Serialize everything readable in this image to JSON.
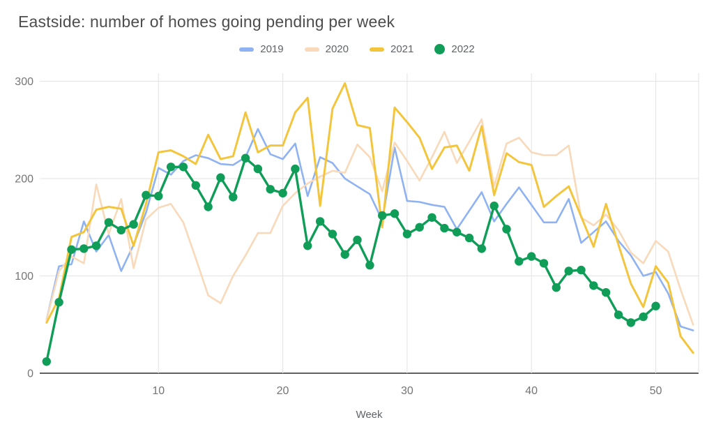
{
  "title": "Eastside: number of homes going pending per week",
  "chart_data": {
    "type": "line",
    "title": "Eastside: number of homes going pending per week",
    "xlabel": "Week",
    "ylabel": "",
    "xlim": [
      1,
      53
    ],
    "ylim": [
      0,
      300
    ],
    "grid": true,
    "legend_position": "top-center",
    "axis_text_color": "#757575",
    "gridline_color": "#e3e3e3",
    "axisline_color": "#616161",
    "y_ticks": [
      0,
      100,
      200,
      300
    ],
    "x_ticks": [
      10,
      20,
      30,
      40,
      50
    ],
    "x": [
      1,
      2,
      3,
      4,
      5,
      6,
      7,
      8,
      9,
      10,
      11,
      12,
      13,
      14,
      15,
      16,
      17,
      18,
      19,
      20,
      21,
      22,
      23,
      24,
      25,
      26,
      27,
      28,
      29,
      30,
      31,
      32,
      33,
      34,
      35,
      36,
      37,
      38,
      39,
      40,
      41,
      42,
      43,
      44,
      45,
      46,
      47,
      48,
      49,
      50,
      51,
      52,
      53
    ],
    "series": [
      {
        "name": "2019",
        "color": "#8fb2f2",
        "style": "line",
        "values": [
          55,
          110,
          112,
          156,
          125,
          142,
          105,
          132,
          165,
          211,
          204,
          218,
          224,
          221,
          215,
          214,
          222,
          251,
          225,
          220,
          236,
          182,
          222,
          216,
          200,
          192,
          184,
          157,
          232,
          177,
          176,
          173,
          171,
          148,
          167,
          186,
          156,
          174,
          191,
          173,
          155,
          155,
          179,
          134,
          145,
          156,
          136,
          121,
          100,
          104,
          82,
          48,
          44
        ]
      },
      {
        "name": "2020",
        "color": "#f8d9b9",
        "style": "line",
        "values": [
          55,
          105,
          120,
          113,
          194,
          143,
          179,
          108,
          158,
          170,
          174,
          155,
          118,
          80,
          72,
          100,
          121,
          144,
          144,
          172,
          185,
          195,
          202,
          208,
          206,
          235,
          222,
          187,
          237,
          218,
          198,
          222,
          248,
          216,
          238,
          261,
          192,
          236,
          242,
          227,
          224,
          224,
          234,
          160,
          152,
          163,
          147,
          124,
          113,
          136,
          125,
          86,
          50
        ]
      },
      {
        "name": "2021",
        "color": "#f3c53d",
        "style": "line",
        "values": [
          52,
          77,
          140,
          145,
          168,
          171,
          169,
          131,
          174,
          227,
          229,
          223,
          215,
          245,
          220,
          223,
          268,
          227,
          234,
          234,
          268,
          283,
          172,
          272,
          298,
          255,
          252,
          150,
          273,
          258,
          242,
          210,
          232,
          234,
          208,
          254,
          183,
          226,
          217,
          214,
          171,
          182,
          192,
          161,
          130,
          174,
          132,
          92,
          68,
          110,
          93,
          38,
          21
        ]
      },
      {
        "name": "2022",
        "color": "#0f9d58",
        "style": "line+markers",
        "values": [
          12,
          73,
          127,
          128,
          131,
          155,
          147,
          153,
          183,
          182,
          212,
          212,
          193,
          171,
          201,
          181,
          221,
          210,
          189,
          185,
          210,
          131,
          156,
          143,
          122,
          137,
          111,
          162,
          164,
          143,
          150,
          160,
          149,
          145,
          139,
          128,
          172,
          148,
          115,
          120,
          113,
          88,
          105,
          106,
          90,
          83,
          60,
          52,
          58,
          69
        ]
      }
    ]
  }
}
